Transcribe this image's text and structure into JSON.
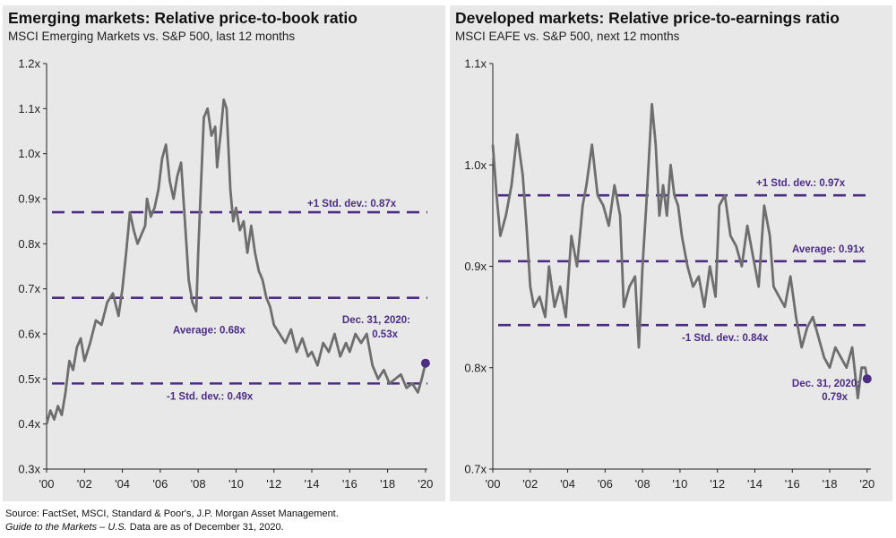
{
  "footer": {
    "source": "Source: FactSet, MSCI, Standard & Poor's, J.P. Morgan Asset Management.",
    "guide_title": "Guide to the Markets – U.S.",
    "guide_rest": " Data are as of December 31, 2020."
  },
  "chart_data": [
    {
      "type": "line",
      "title": "Emerging markets: Relative price-to-book ratio",
      "subtitle": "MSCI Emerging Markets vs. S&P 500, last 12 months",
      "xlim": [
        2000,
        2020.1
      ],
      "ylim": [
        0.3,
        1.2
      ],
      "x_tick_labels": [
        "'00",
        "'02",
        "'04",
        "'06",
        "'08",
        "'10",
        "'12",
        "'14",
        "'16",
        "'18",
        "'20"
      ],
      "y_tick_labels": [
        "0.3x",
        "0.4x",
        "0.5x",
        "0.6x",
        "0.7x",
        "0.8x",
        "0.9x",
        "1.0x",
        "1.1x",
        "1.2x"
      ],
      "line_color": "#6e6e6e",
      "reference_color": "#4b2d83",
      "references": [
        {
          "label": "+1 Std. dev.: 0.87x",
          "value": 0.87
        },
        {
          "label": "Average: 0.68x",
          "value": 0.68
        },
        {
          "label": "-1 Std. dev.: 0.49x",
          "value": 0.49
        }
      ],
      "last_point": {
        "label_line1": "Dec. 31, 2020:",
        "label_line2": "0.53x",
        "x": 2020.0,
        "y": 0.535
      },
      "series": [
        {
          "x": [
            2000.0,
            2000.2,
            2000.4,
            2000.6,
            2000.8,
            2001.0,
            2001.2,
            2001.4,
            2001.6,
            2001.8,
            2002.0,
            2002.3,
            2002.6,
            2002.9,
            2003.2,
            2003.5,
            2003.8,
            2004.0,
            2004.2,
            2004.4,
            2004.6,
            2004.8,
            2005.0,
            2005.2,
            2005.3,
            2005.5,
            2005.7,
            2005.9,
            2006.1,
            2006.3,
            2006.5,
            2006.7,
            2006.9,
            2007.1,
            2007.3,
            2007.5,
            2007.7,
            2007.9,
            2008.0,
            2008.15,
            2008.3,
            2008.5,
            2008.7,
            2008.9,
            2009.0,
            2009.2,
            2009.35,
            2009.5,
            2009.7,
            2009.85,
            2010.0,
            2010.2,
            2010.4,
            2010.6,
            2010.8,
            2011.0,
            2011.2,
            2011.4,
            2011.6,
            2011.8,
            2012.0,
            2012.3,
            2012.6,
            2012.9,
            2013.2,
            2013.5,
            2013.8,
            2014.0,
            2014.3,
            2014.6,
            2014.9,
            2015.2,
            2015.5,
            2015.8,
            2016.0,
            2016.3,
            2016.6,
            2016.9,
            2017.2,
            2017.5,
            2017.8,
            2018.1,
            2018.4,
            2018.7,
            2019.0,
            2019.3,
            2019.6,
            2019.8,
            2020.0
          ],
          "y": [
            0.4,
            0.43,
            0.41,
            0.44,
            0.42,
            0.47,
            0.54,
            0.52,
            0.57,
            0.59,
            0.54,
            0.58,
            0.63,
            0.62,
            0.67,
            0.69,
            0.64,
            0.7,
            0.78,
            0.87,
            0.83,
            0.8,
            0.82,
            0.84,
            0.9,
            0.86,
            0.88,
            0.92,
            0.99,
            1.02,
            0.94,
            0.9,
            0.95,
            0.98,
            0.85,
            0.72,
            0.67,
            0.65,
            0.78,
            0.93,
            1.08,
            1.1,
            1.04,
            1.06,
            0.97,
            1.05,
            1.12,
            1.1,
            0.92,
            0.85,
            0.88,
            0.83,
            0.85,
            0.78,
            0.84,
            0.78,
            0.74,
            0.72,
            0.68,
            0.66,
            0.62,
            0.6,
            0.58,
            0.61,
            0.56,
            0.59,
            0.55,
            0.56,
            0.53,
            0.58,
            0.56,
            0.6,
            0.55,
            0.58,
            0.56,
            0.6,
            0.58,
            0.6,
            0.53,
            0.5,
            0.52,
            0.49,
            0.5,
            0.51,
            0.48,
            0.49,
            0.47,
            0.5,
            0.535
          ]
        }
      ]
    },
    {
      "type": "line",
      "title": "Developed markets: Relative price-to-earnings ratio",
      "subtitle": "MSCI EAFE vs. S&P 500, next 12 months",
      "xlim": [
        2000,
        2020.2
      ],
      "ylim": [
        0.7,
        1.1
      ],
      "x_tick_labels": [
        "'00",
        "'02",
        "'04",
        "'06",
        "'08",
        "'10",
        "'12",
        "'14",
        "'16",
        "'18",
        "'20"
      ],
      "y_tick_labels": [
        "0.7x",
        "0.8x",
        "0.9x",
        "1.0x",
        "1.1x"
      ],
      "line_color": "#6e6e6e",
      "reference_color": "#4b2d83",
      "references": [
        {
          "label": "+1 Std. dev.: 0.97x",
          "value": 0.97
        },
        {
          "label": "Average: 0.91x",
          "value": 0.905
        },
        {
          "label": "-1 Std. dev.: 0.84x",
          "value": 0.842
        }
      ],
      "last_point": {
        "label_line1": "Dec. 31, 2020:",
        "label_line2": "0.79x",
        "x": 2020.0,
        "y": 0.789
      },
      "series": [
        {
          "x": [
            2000.0,
            2000.2,
            2000.4,
            2000.7,
            2001.0,
            2001.3,
            2001.6,
            2001.8,
            2002.0,
            2002.2,
            2002.5,
            2002.8,
            2003.0,
            2003.3,
            2003.6,
            2003.9,
            2004.2,
            2004.5,
            2004.8,
            2005.0,
            2005.3,
            2005.6,
            2005.9,
            2006.2,
            2006.5,
            2006.8,
            2007.0,
            2007.3,
            2007.6,
            2007.8,
            2008.0,
            2008.2,
            2008.5,
            2008.7,
            2008.9,
            2009.1,
            2009.3,
            2009.5,
            2009.7,
            2009.9,
            2010.1,
            2010.4,
            2010.7,
            2011.0,
            2011.3,
            2011.6,
            2011.9,
            2012.1,
            2012.4,
            2012.7,
            2013.0,
            2013.3,
            2013.6,
            2013.9,
            2014.2,
            2014.5,
            2014.8,
            2015.0,
            2015.3,
            2015.6,
            2015.9,
            2016.2,
            2016.5,
            2016.8,
            2017.1,
            2017.4,
            2017.7,
            2018.0,
            2018.3,
            2018.6,
            2018.9,
            2019.2,
            2019.5,
            2019.7,
            2019.9,
            2020.0
          ],
          "y": [
            1.02,
            0.97,
            0.93,
            0.95,
            0.98,
            1.03,
            0.99,
            0.94,
            0.88,
            0.86,
            0.87,
            0.85,
            0.9,
            0.86,
            0.88,
            0.85,
            0.93,
            0.9,
            0.96,
            0.98,
            1.02,
            0.97,
            0.96,
            0.94,
            0.98,
            0.95,
            0.86,
            0.88,
            0.89,
            0.82,
            0.9,
            0.96,
            1.06,
            1.02,
            0.95,
            0.98,
            0.95,
            1.0,
            0.97,
            0.96,
            0.93,
            0.9,
            0.88,
            0.89,
            0.86,
            0.9,
            0.87,
            0.96,
            0.97,
            0.93,
            0.92,
            0.9,
            0.94,
            0.91,
            0.88,
            0.96,
            0.93,
            0.88,
            0.87,
            0.86,
            0.89,
            0.85,
            0.82,
            0.84,
            0.85,
            0.83,
            0.81,
            0.8,
            0.82,
            0.81,
            0.8,
            0.82,
            0.77,
            0.8,
            0.8,
            0.789
          ]
        }
      ]
    }
  ]
}
